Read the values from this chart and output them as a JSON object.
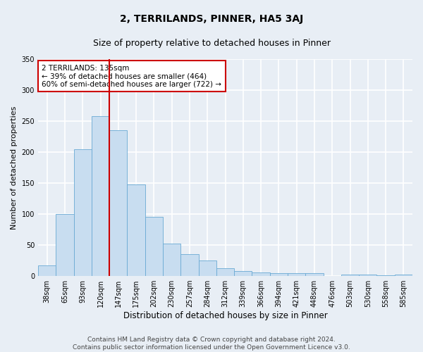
{
  "title": "2, TERRILANDS, PINNER, HA5 3AJ",
  "subtitle": "Size of property relative to detached houses in Pinner",
  "xlabel": "Distribution of detached houses by size in Pinner",
  "ylabel": "Number of detached properties",
  "footer_line1": "Contains HM Land Registry data © Crown copyright and database right 2024.",
  "footer_line2": "Contains public sector information licensed under the Open Government Licence v3.0.",
  "bin_labels": [
    "38sqm",
    "65sqm",
    "93sqm",
    "120sqm",
    "147sqm",
    "175sqm",
    "202sqm",
    "230sqm",
    "257sqm",
    "284sqm",
    "312sqm",
    "339sqm",
    "366sqm",
    "394sqm",
    "421sqm",
    "448sqm",
    "476sqm",
    "503sqm",
    "530sqm",
    "558sqm",
    "585sqm"
  ],
  "bar_values": [
    17,
    100,
    205,
    258,
    235,
    148,
    95,
    52,
    35,
    25,
    13,
    8,
    6,
    5,
    5,
    5,
    0,
    2,
    2,
    1,
    2
  ],
  "bar_color": "#c8ddf0",
  "bar_edge_color": "#6aaad4",
  "background_color": "#e8eef5",
  "grid_color": "#ffffff",
  "red_line_x": 3.5,
  "annotation_text": "2 TERRILANDS: 135sqm\n← 39% of detached houses are smaller (464)\n60% of semi-detached houses are larger (722) →",
  "annotation_box_color": "#ffffff",
  "annotation_box_edge": "#cc0000",
  "red_line_color": "#cc0000",
  "ylim": [
    0,
    350
  ],
  "yticks": [
    0,
    50,
    100,
    150,
    200,
    250,
    300,
    350
  ],
  "title_fontsize": 10,
  "subtitle_fontsize": 9,
  "xlabel_fontsize": 8.5,
  "ylabel_fontsize": 8,
  "tick_fontsize": 7,
  "footer_fontsize": 6.5,
  "fig_facecolor": "#e8eef5"
}
